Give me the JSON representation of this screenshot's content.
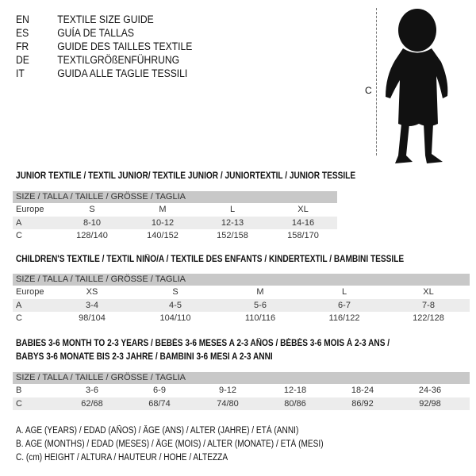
{
  "header": [
    {
      "code": "EN",
      "text": "TEXTILE SIZE GUIDE"
    },
    {
      "code": "ES",
      "text": "GUÍA DE TALLAS"
    },
    {
      "code": "FR",
      "text": "GUIDE DES TAILLES TEXTILE"
    },
    {
      "code": "DE",
      "text": "TEXTILGRÖßENFÜHRUNG"
    },
    {
      "code": "IT",
      "text": "GUIDA ALLE TAGLIE TESSILI"
    }
  ],
  "figure": {
    "measure_label": "C"
  },
  "tables": [
    {
      "title_lines": [
        "JUNIOR TEXTILE / TEXTIL JUNIOR/ TEXTILE JUNIOR / JUNIORTEXTIL / JUNIOR TESSILE"
      ],
      "header": "SIZE / TALLA / TAILLE / GRÖSSE / TAGLIA",
      "rows": [
        {
          "label": "Europe",
          "values": [
            "S",
            "M",
            "L",
            "XL"
          ]
        },
        {
          "label": "A",
          "values": [
            "8-10",
            "10-12",
            "12-13",
            "14-16"
          ]
        },
        {
          "label": "C",
          "values": [
            "128/140",
            "140/152",
            "152/158",
            "158/170"
          ]
        }
      ]
    },
    {
      "title_lines": [
        "CHILDREN'S TEXTILE / TEXTIL NIÑO/A / TEXTILE DES ENFANTS / KINDERTEXTIL / BAMBINI TESSILE"
      ],
      "header": "SIZE / TALLA / TAILLE / GRÖSSE / TAGLIA",
      "rows": [
        {
          "label": "Europe",
          "values": [
            "XS",
            "S",
            "M",
            "L",
            "XL"
          ]
        },
        {
          "label": "A",
          "values": [
            "3-4",
            "4-5",
            "5-6",
            "6-7",
            "7-8"
          ]
        },
        {
          "label": "C",
          "values": [
            "98/104",
            "104/110",
            "110/116",
            "116/122",
            "122/128"
          ]
        }
      ]
    },
    {
      "title_lines": [
        "BABIES 3-6 MONTH TO 2-3 YEARS / BEBÉS 3-6 MESES A 2-3 AÑOS / BÉBÉS 3-6 MOIS À 2-3 ANS /",
        "BABYS 3-6 MONATE BIS 2-3 JAHRE / BAMBINI 3-6 MESI A 2-3 ANNI"
      ],
      "header": "SIZE / TALLA / TAILLE / GRÖSSE / TAGLIA",
      "rows": [
        {
          "label": "B",
          "values": [
            "3-6",
            "6-9",
            "9-12",
            "12-18",
            "18-24",
            "24-36"
          ]
        },
        {
          "label": "C",
          "values": [
            "62/68",
            "68/74",
            "74/80",
            "80/86",
            "86/92",
            "92/98"
          ]
        }
      ]
    }
  ],
  "legend": [
    "A. AGE (YEARS) / EDAD (AÑOS) / ÂGE (ANS) / ALTER (JAHRE) / ETÀ (ANNI)",
    "B. AGE (MONTHS) / EDAD (MESES) / ÂGE (MOIS) / ALTER (MONATE) / ETÀ (MESI)",
    "C. (cm) HEIGHT / ALTURA / HAUTEUR / HÖHE / ALTEZZA"
  ]
}
